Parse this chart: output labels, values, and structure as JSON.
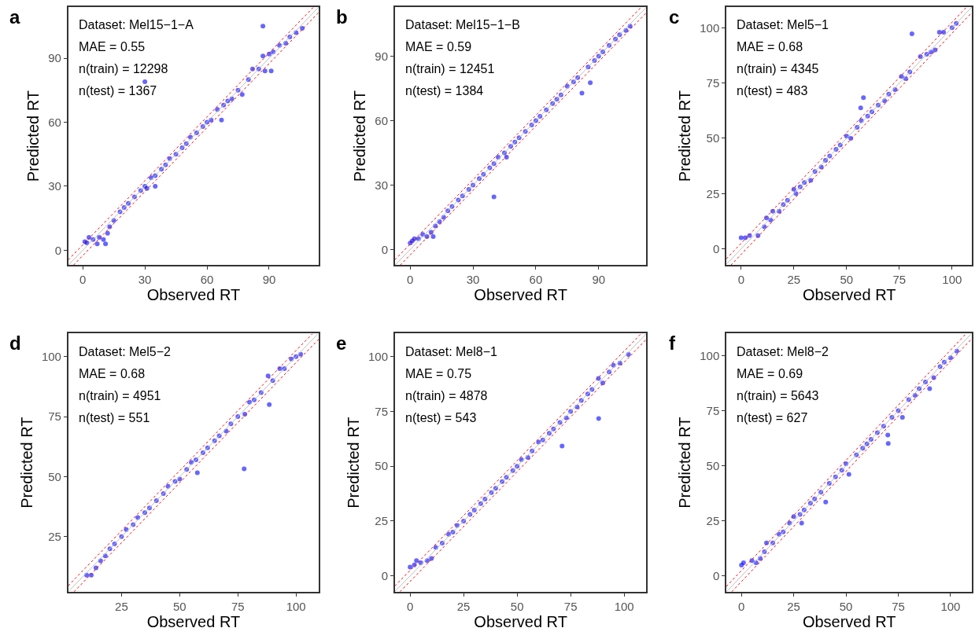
{
  "chart_data": [
    {
      "type": "scatter",
      "title": "a",
      "xlabel": "Observed RT",
      "ylabel": "Predicted RT",
      "annotations": [
        "Dataset: Mel15−1−A",
        "MAE = 0.55",
        "n(train) = 12298",
        "n(test) = 1367"
      ],
      "xlim": [
        -7,
        114
      ],
      "ylim": [
        -7,
        114
      ],
      "xticks": [
        0,
        30,
        60,
        90
      ],
      "yticks": [
        0,
        30,
        60,
        90
      ],
      "series": [
        {
          "type": "scatter",
          "marker": "circle",
          "color": "#0000ff",
          "x": [
            1,
            2,
            3,
            5,
            7,
            8,
            10,
            11,
            12,
            13,
            15,
            18,
            20,
            22,
            25,
            28,
            30,
            31,
            33,
            35,
            35,
            38,
            40,
            42,
            45,
            48,
            50,
            52,
            55,
            58,
            60,
            62,
            65,
            67,
            68,
            70,
            72,
            75,
            77,
            80,
            82,
            85,
            87,
            88,
            90,
            92,
            95,
            98,
            100,
            103,
            106,
            87,
            30,
            91
          ],
          "values": [
            4,
            3.5,
            6,
            5,
            3,
            6,
            5,
            3,
            8,
            11,
            14,
            18,
            20,
            22,
            25,
            28,
            30,
            29,
            34,
            35,
            30,
            38,
            40,
            43,
            45,
            48,
            50,
            53,
            55,
            58,
            60,
            61,
            66,
            61,
            68,
            70,
            71,
            75,
            73,
            80,
            85,
            85,
            91,
            84,
            92,
            93,
            96,
            97,
            100,
            102,
            104,
            105,
            79,
            84
          ]
        },
        {
          "type": "line",
          "line_style": "solid",
          "color": "#bebebe",
          "x": [
            -7,
            114
          ],
          "values": [
            -7,
            114
          ]
        },
        {
          "type": "line",
          "line_style": "dotted",
          "color": "#ff0000",
          "x": [
            -7,
            111.5
          ],
          "values": [
            -4.5,
            114
          ]
        },
        {
          "type": "line",
          "line_style": "dotted",
          "color": "#ff0000",
          "x": [
            -4.5,
            114
          ],
          "values": [
            -7,
            111.5
          ]
        }
      ]
    },
    {
      "type": "scatter",
      "title": "b",
      "xlabel": "Observed RT",
      "ylabel": "Predicted RT",
      "annotations": [
        "Dataset: Mel15−1−B",
        "MAE = 0.59",
        "n(train) = 12451",
        "n(test) = 1384"
      ],
      "xlim": [
        -7.3,
        112.8
      ],
      "ylim": [
        -7.3,
        112.9
      ],
      "xticks": [
        0,
        30,
        60,
        90
      ],
      "yticks": [
        0,
        30,
        60,
        90
      ],
      "series": [
        {
          "type": "scatter",
          "marker": "circle",
          "color": "#0000ff",
          "x": [
            0,
            1,
            2,
            4,
            6,
            8,
            10,
            11,
            12,
            14,
            16,
            18,
            20,
            23,
            25,
            28,
            30,
            33,
            35,
            38,
            40,
            40,
            42,
            45,
            46,
            48,
            50,
            52,
            55,
            58,
            60,
            62,
            65,
            68,
            70,
            72,
            75,
            78,
            80,
            82,
            85,
            86,
            88,
            90,
            92,
            95,
            98,
            100,
            103,
            105
          ],
          "values": [
            3,
            4,
            5,
            5,
            7,
            6,
            8,
            6,
            11,
            13,
            15,
            18,
            20,
            23,
            25,
            28,
            30,
            33,
            35,
            38,
            40,
            24.5,
            43,
            45,
            43,
            48,
            50,
            52,
            55,
            58,
            60,
            62,
            65,
            68,
            70,
            72,
            76,
            78,
            80,
            72.8,
            85,
            77.7,
            88,
            90,
            92,
            95,
            98,
            100,
            102,
            104
          ]
        },
        {
          "type": "line",
          "line_style": "solid",
          "color": "#bebebe",
          "x": [
            -7.3,
            112.8
          ],
          "values": [
            -7.3,
            112.8
          ]
        },
        {
          "type": "line",
          "line_style": "dotted",
          "color": "#ff0000",
          "x": [
            -7.3,
            110.4
          ],
          "values": [
            -4.8,
            112.9
          ]
        },
        {
          "type": "line",
          "line_style": "dotted",
          "color": "#ff0000",
          "x": [
            -4.8,
            112.8
          ],
          "values": [
            -7.3,
            110.3
          ]
        }
      ]
    },
    {
      "type": "scatter",
      "title": "c",
      "xlabel": "Observed RT",
      "ylabel": "Predicted RT",
      "annotations": [
        "Dataset: Mel5−1",
        "MAE = 0.68",
        "n(train) = 4345",
        "n(test) = 483"
      ],
      "xlim": [
        -7,
        109.5
      ],
      "ylim": [
        -7.4,
        109.4
      ],
      "xticks": [
        0,
        25,
        50,
        75,
        100
      ],
      "yticks": [
        0,
        25,
        50,
        75,
        100
      ],
      "series": [
        {
          "type": "scatter",
          "marker": "circle",
          "color": "#0000ff",
          "x": [
            0,
            2,
            4,
            8,
            11,
            12,
            14,
            15,
            18,
            20,
            22,
            25,
            26,
            28,
            30,
            33,
            35,
            38,
            40,
            42,
            45,
            47,
            50,
            52,
            55,
            57,
            58,
            56.7,
            60,
            62,
            65,
            68,
            70,
            73,
            76,
            78,
            80,
            81,
            85,
            88,
            90,
            92,
            94,
            96,
            100,
            102
          ],
          "values": [
            5,
            5,
            6,
            6,
            10,
            14,
            13,
            17,
            17,
            20,
            22,
            27,
            25,
            28,
            30,
            31,
            35,
            37,
            40,
            42,
            45,
            47,
            51,
            50,
            55,
            58,
            68.4,
            63.8,
            60,
            62,
            65,
            67,
            70,
            72,
            78,
            77,
            80,
            97.3,
            87,
            88,
            89,
            90,
            98,
            98,
            100,
            102
          ]
        },
        {
          "type": "line",
          "line_style": "solid",
          "color": "#bebebe",
          "x": [
            -7,
            109.4
          ],
          "values": [
            -7,
            109.4
          ]
        },
        {
          "type": "line",
          "line_style": "dotted",
          "color": "#ff0000",
          "x": [
            -7,
            106.9
          ],
          "values": [
            -4.5,
            109.4
          ]
        },
        {
          "type": "line",
          "line_style": "dotted",
          "color": "#ff0000",
          "x": [
            -4.9,
            109.5
          ],
          "values": [
            -7.4,
            107
          ]
        }
      ]
    },
    {
      "type": "scatter",
      "title": "d",
      "xlabel": "Observed RT",
      "ylabel": "Predicted RT",
      "annotations": [
        "Dataset: Mel5−2",
        "MAE = 0.68",
        "n(train) = 4951",
        "n(test) = 551"
      ],
      "xlim": [
        2.1,
        109.8
      ],
      "ylim": [
        2.1,
        109.6
      ],
      "xticks": [
        25,
        50,
        75,
        100
      ],
      "yticks": [
        25,
        50,
        75,
        100
      ],
      "series": [
        {
          "type": "scatter",
          "marker": "circle",
          "color": "#0000ff",
          "x": [
            10,
            12,
            14,
            16,
            18,
            20,
            22,
            25,
            27,
            30,
            32,
            35,
            37,
            40,
            43,
            45,
            48,
            50,
            53,
            55,
            57,
            57.6,
            60,
            62,
            65,
            67,
            70,
            72,
            75,
            78,
            77.7,
            80,
            82,
            85,
            88.5,
            88,
            90,
            93,
            95,
            98,
            100,
            102
          ],
          "values": [
            9,
            9,
            12,
            15,
            17,
            20,
            22,
            25,
            28,
            30,
            33,
            35,
            37,
            40,
            43,
            46,
            48,
            49,
            53,
            56,
            57,
            51.6,
            60,
            62,
            65,
            67,
            69,
            72,
            75,
            76,
            53.3,
            81,
            82,
            85,
            80,
            92,
            90,
            95,
            95,
            99,
            100,
            101
          ]
        },
        {
          "type": "line",
          "line_style": "solid",
          "color": "#bebebe",
          "x": [
            2.1,
            109.6
          ],
          "values": [
            2.1,
            109.6
          ]
        },
        {
          "type": "line",
          "line_style": "dotted",
          "color": "#ff0000",
          "x": [
            2.1,
            107.1
          ],
          "values": [
            4.6,
            109.6
          ]
        },
        {
          "type": "line",
          "line_style": "dotted",
          "color": "#ff0000",
          "x": [
            4.6,
            109.8
          ],
          "values": [
            2.1,
            107.3
          ]
        }
      ]
    },
    {
      "type": "scatter",
      "title": "e",
      "xlabel": "Observed RT",
      "ylabel": "Predicted RT",
      "annotations": [
        "Dataset: Mel8−1",
        "MAE = 0.75",
        "n(train) = 4878",
        "n(test) = 543"
      ],
      "xlim": [
        -7.1,
        110.4
      ],
      "ylim": [
        -7.2,
        110.5
      ],
      "xticks": [
        0,
        25,
        50,
        75,
        100
      ],
      "yticks": [
        0,
        25,
        50,
        75,
        100
      ],
      "series": [
        {
          "type": "scatter",
          "marker": "circle",
          "color": "#0000ff",
          "x": [
            0,
            2,
            3,
            5,
            8,
            10,
            12,
            15,
            18,
            20,
            22,
            25,
            28,
            30,
            33,
            35,
            38,
            40,
            43,
            45,
            48,
            50,
            52,
            55,
            57,
            60,
            62,
            65,
            67,
            70,
            71,
            73,
            75,
            78,
            80,
            83,
            85,
            88.1,
            88,
            90,
            93,
            95,
            98,
            102
          ],
          "values": [
            4,
            5,
            7,
            6,
            7,
            8,
            13,
            15,
            19,
            20,
            23,
            25,
            28,
            30,
            33,
            35,
            38,
            40,
            43,
            45,
            48,
            50,
            53,
            54,
            57,
            61,
            62,
            65,
            67,
            70,
            59.2,
            72,
            75,
            77,
            80,
            83,
            85,
            71.8,
            90,
            88,
            93,
            96,
            97,
            101
          ]
        },
        {
          "type": "line",
          "line_style": "solid",
          "color": "#bebebe",
          "x": [
            -7.1,
            110.4
          ],
          "values": [
            -7.1,
            110.4
          ]
        },
        {
          "type": "line",
          "line_style": "dotted",
          "color": "#ff0000",
          "x": [
            -7.1,
            108
          ],
          "values": [
            -4.6,
            110.5
          ]
        },
        {
          "type": "line",
          "line_style": "dotted",
          "color": "#ff0000",
          "x": [
            -4.7,
            110.4
          ],
          "values": [
            -7.2,
            107.9
          ]
        }
      ]
    },
    {
      "type": "scatter",
      "title": "f",
      "xlabel": "Observed RT",
      "ylabel": "Predicted RT",
      "annotations": [
        "Dataset: Mel8−2",
        "MAE = 0.69",
        "n(train) = 5643",
        "n(test) = 627"
      ],
      "xlim": [
        -7.2,
        110.3
      ],
      "ylim": [
        -7.1,
        110
      ],
      "xticks": [
        0,
        25,
        50,
        75,
        100
      ],
      "yticks": [
        0,
        25,
        50,
        75,
        100
      ],
      "series": [
        {
          "type": "scatter",
          "marker": "circle",
          "color": "#0000ff",
          "x": [
            0,
            1,
            5,
            7,
            9,
            11,
            12,
            15,
            18,
            20,
            23,
            25,
            28,
            28.8,
            30,
            33,
            35,
            38,
            40.3,
            42,
            45,
            48,
            50,
            51.4,
            55,
            58,
            60,
            62,
            65,
            68,
            70,
            70.2,
            72,
            75,
            77,
            80,
            83,
            85,
            88,
            90,
            92,
            95,
            97,
            100,
            103
          ],
          "values": [
            5,
            6,
            7,
            6,
            8,
            11,
            15,
            15,
            19,
            20,
            24,
            27,
            28,
            24,
            30,
            33,
            35,
            38,
            33.6,
            42,
            45,
            48,
            51,
            46.1,
            55,
            58,
            60,
            62,
            65,
            68,
            64,
            60.1,
            72,
            75,
            72,
            80,
            82,
            85,
            88,
            85,
            90,
            95,
            97,
            99,
            102
          ]
        },
        {
          "type": "line",
          "line_style": "solid",
          "color": "#bebebe",
          "x": [
            -7.1,
            110
          ],
          "values": [
            -7.1,
            110
          ]
        },
        {
          "type": "line",
          "line_style": "dotted",
          "color": "#ff0000",
          "x": [
            -7.2,
            107.5
          ],
          "values": [
            -4.7,
            110
          ]
        },
        {
          "type": "line",
          "line_style": "dotted",
          "color": "#ff0000",
          "x": [
            -4.6,
            110.3
          ],
          "values": [
            -7.1,
            107.8
          ]
        }
      ]
    }
  ]
}
